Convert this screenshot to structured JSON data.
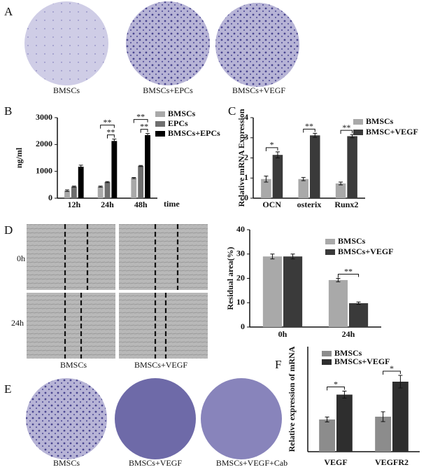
{
  "panels": {
    "A": {
      "label": "A",
      "captions": [
        "BMSCs",
        "BMSCs+EPCs",
        "BMSCs+VEGF"
      ]
    },
    "D": {
      "label": "D",
      "rows": [
        "0h",
        "24h"
      ],
      "captions": [
        "BMSCs",
        "BMSCs+VEGF"
      ]
    },
    "E": {
      "label": "E",
      "captions": [
        "BMSCs",
        "BMSCs+VEGF",
        "BMSCs+VEGF+Cab"
      ]
    }
  },
  "chart_data": [
    {
      "type": "bar",
      "panel_label": "B",
      "y_label": "ng/ml",
      "x_label": "time",
      "categories": [
        "12h",
        "24h",
        "48h"
      ],
      "series": [
        {
          "name": "BMSCs",
          "color": "#a9a9a9",
          "values": [
            280,
            430,
            750
          ],
          "errors": [
            30,
            20,
            20
          ]
        },
        {
          "name": "EPCs",
          "color": "#6e6e6e",
          "values": [
            430,
            600,
            1200
          ],
          "errors": [
            20,
            20,
            20
          ]
        },
        {
          "name": "BMSCs+EPCs",
          "color": "#000000",
          "values": [
            1170,
            2130,
            2350
          ],
          "errors": [
            60,
            70,
            60
          ]
        }
      ],
      "significance": [
        [],
        [
          "**",
          "**"
        ],
        [
          "**",
          "**"
        ]
      ],
      "ylim": [
        0,
        3000
      ],
      "yticks": [
        0,
        1000,
        2000,
        3000
      ]
    },
    {
      "type": "bar",
      "panel_label": "C",
      "y_label": "Relative mRNA Expression",
      "categories": [
        "OCN",
        "osterix",
        "Runx2"
      ],
      "series": [
        {
          "name": "BMSCs",
          "color": "#a9a9a9",
          "values": [
            0.95,
            0.95,
            0.73
          ],
          "errors": [
            0.15,
            0.08,
            0.07
          ]
        },
        {
          "name": "BMSC+VEGF",
          "color": "#3a3a3a",
          "values": [
            2.15,
            3.12,
            3.08
          ],
          "errors": [
            0.15,
            0.1,
            0.08
          ]
        }
      ],
      "significance": [
        [
          "*"
        ],
        [
          "**"
        ],
        [
          "**"
        ]
      ],
      "ylim": [
        0,
        4
      ],
      "yticks": [
        0,
        1,
        2,
        3,
        4
      ]
    },
    {
      "type": "bar",
      "panel_label": null,
      "y_label": "Residual area(%)",
      "categories": [
        "0h",
        "24h"
      ],
      "series": [
        {
          "name": "BMSCs",
          "color": "#a9a9a9",
          "values": [
            29,
            19.3
          ],
          "errors": [
            1,
            0.7
          ]
        },
        {
          "name": "BMSCs+VEGF",
          "color": "#3a3a3a",
          "values": [
            29,
            9.8
          ],
          "errors": [
            1,
            0.5
          ]
        }
      ],
      "significance": [
        [],
        [
          "**"
        ]
      ],
      "ylim": [
        0,
        40
      ],
      "yticks": [
        0,
        10,
        20,
        30,
        40
      ]
    },
    {
      "type": "bar",
      "panel_label": "F",
      "y_label": "Relative expression of mRNA",
      "categories": [
        "VEGF",
        "VEGFR2"
      ],
      "series": [
        {
          "name": "BMSCs",
          "color": "#8c8c8c",
          "values": [
            0.92,
            1.0
          ],
          "errors": [
            0.07,
            0.14
          ]
        },
        {
          "name": "BMSCs+VEGF",
          "color": "#2e2e2e",
          "values": [
            1.63,
            2.0
          ],
          "errors": [
            0.1,
            0.18
          ]
        }
      ],
      "significance": [
        [
          "*"
        ],
        [
          "*"
        ]
      ],
      "ylim": [
        0,
        3
      ]
    }
  ]
}
